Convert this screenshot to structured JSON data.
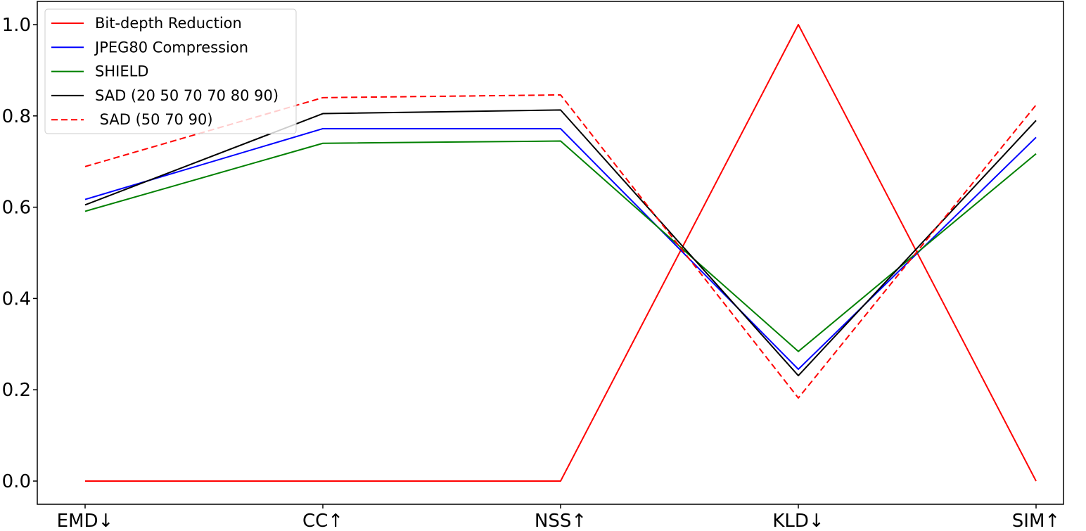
{
  "chart_data": {
    "type": "line",
    "categories": [
      "EMD↓",
      "CC↑",
      "NSS↑",
      "KLD↓",
      "SIM↑"
    ],
    "ylim": [
      -0.05,
      1.05
    ],
    "yticks": [
      0.0,
      0.2,
      0.4,
      0.6,
      0.8,
      1.0
    ],
    "ytick_labels": [
      "0.0",
      "0.2",
      "0.4",
      "0.6",
      "0.8",
      "1.0"
    ],
    "grid": false,
    "legend_position": "upper-left",
    "series": [
      {
        "name": "Bit-depth Reduction",
        "color": "#ff0000",
        "dash": "solid",
        "values": [
          0.0,
          0.0,
          0.0,
          1.0,
          0.0
        ]
      },
      {
        "name": "JPEG80 Compression",
        "color": "#0000ff",
        "dash": "solid",
        "values": [
          0.617,
          0.772,
          0.772,
          0.245,
          0.753
        ]
      },
      {
        "name": "SHIELD",
        "color": "#008000",
        "dash": "solid",
        "values": [
          0.591,
          0.74,
          0.745,
          0.284,
          0.717
        ]
      },
      {
        "name": "SAD (20 50 70 70 80 90)",
        "color": "#000000",
        "dash": "solid",
        "values": [
          0.605,
          0.805,
          0.813,
          0.231,
          0.79
        ]
      },
      {
        "name": " SAD (50 70 90)",
        "color": "#ff0000",
        "dash": "dashed",
        "values": [
          0.689,
          0.84,
          0.846,
          0.182,
          0.824
        ]
      }
    ]
  }
}
